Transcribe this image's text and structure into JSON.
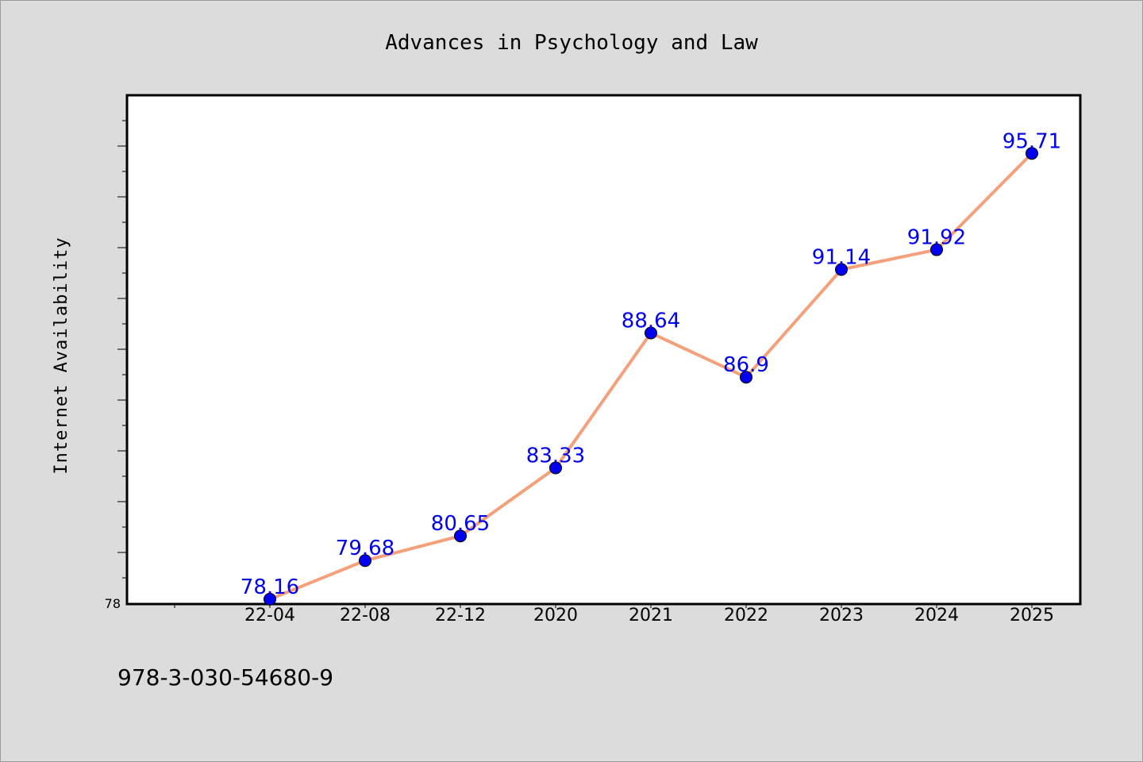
{
  "chart_data": {
    "type": "line",
    "title": "Advances in Psychology and Law",
    "xlabel": "",
    "ylabel": "Internet Availability",
    "categories": [
      "22-04",
      "22-08",
      "22-12",
      "2020",
      "2021",
      "2022",
      "2023",
      "2024",
      "2025"
    ],
    "series": [
      {
        "values": [
          78.16,
          79.68,
          80.65,
          83.33,
          88.64,
          86.9,
          91.14,
          91.92,
          95.71
        ]
      }
    ],
    "ylim": [
      78,
      98
    ],
    "yticks_labeled": [
      "78"
    ],
    "grid": false,
    "legend": "none",
    "colors": {
      "line": "#f4a07a",
      "marker": "#0000ee",
      "data_label": "#0000ee",
      "plot_bg": "#ffffff",
      "page_bg": "#dcdcdc"
    }
  },
  "footer": {
    "isbn": "978-3-030-54680-9"
  }
}
